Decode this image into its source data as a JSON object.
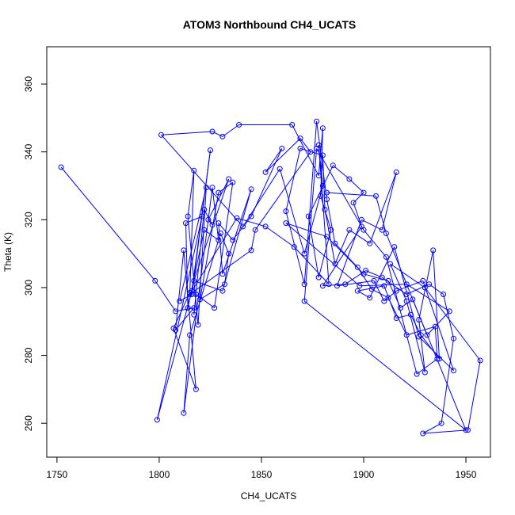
{
  "chart_data": {
    "type": "line",
    "title": "ATOM3 Northbound CH4_UCATS",
    "xlabel": "CH4_UCATS",
    "ylabel": "Theta (K)",
    "xlim": [
      1745,
      1962
    ],
    "ylim": [
      250,
      371
    ],
    "x_ticks": [
      1750,
      1800,
      1850,
      1900,
      1950
    ],
    "y_ticks": [
      260,
      280,
      300,
      320,
      340,
      360
    ],
    "grid": false,
    "markers": "open-circle",
    "line_color": "#0000ff",
    "series": [
      {
        "name": "",
        "points": [
          [
            1752,
            335.5
          ],
          [
            1798,
            302
          ],
          [
            1808,
            293
          ],
          [
            1817,
            294
          ],
          [
            1808,
            287.5
          ],
          [
            1812,
            311
          ],
          [
            1818,
            270
          ],
          [
            1807,
            288
          ],
          [
            1815,
            298.5
          ],
          [
            1817,
            334.5
          ],
          [
            1814,
            321
          ],
          [
            1819,
            289
          ],
          [
            1823,
            329.5
          ],
          [
            1810,
            296
          ],
          [
            1816,
            298
          ],
          [
            1825,
            340.5
          ],
          [
            1816,
            299
          ],
          [
            1799,
            261
          ],
          [
            1821,
            321
          ],
          [
            1813,
            319
          ],
          [
            1814,
            294
          ],
          [
            1822,
            317
          ],
          [
            1829,
            314
          ],
          [
            1826,
            329.5
          ],
          [
            1812,
            263
          ],
          [
            1815,
            286
          ],
          [
            1830,
            316
          ],
          [
            1834,
            310
          ],
          [
            1832,
            301
          ],
          [
            1820,
            296.5
          ],
          [
            1829,
            328
          ],
          [
            1836,
            331
          ],
          [
            1827,
            294
          ],
          [
            1818,
            298
          ],
          [
            1817,
            292
          ],
          [
            1822,
            323
          ],
          [
            1826,
            318.5
          ],
          [
            1824,
            320
          ],
          [
            1834,
            332
          ],
          [
            1817,
            302
          ],
          [
            1831,
            299
          ],
          [
            1845,
            329
          ],
          [
            1831,
            304
          ],
          [
            1829,
            319
          ],
          [
            1836,
            314
          ],
          [
            1845,
            321
          ],
          [
            1860,
            341
          ],
          [
            1852,
            334
          ],
          [
            1869,
            344
          ],
          [
            1874,
            340
          ],
          [
            1847,
            317
          ],
          [
            1845,
            311
          ],
          [
            1815,
            298
          ],
          [
            1838,
            320.5
          ],
          [
            1852,
            318
          ],
          [
            1866,
            312
          ],
          [
            1883,
            301
          ],
          [
            1878,
            342
          ],
          [
            1880,
            330
          ],
          [
            1871,
            310
          ],
          [
            1859,
            335
          ],
          [
            1841,
            318
          ],
          [
            1801,
            345
          ],
          [
            1826,
            346
          ],
          [
            1831,
            344.5
          ],
          [
            1839,
            348
          ],
          [
            1865,
            348
          ],
          [
            1878,
            333
          ],
          [
            1880,
            347
          ],
          [
            1879,
            327
          ],
          [
            1884,
            317
          ],
          [
            1878,
            303
          ],
          [
            1873,
            321
          ],
          [
            1885,
            336
          ],
          [
            1893,
            332
          ],
          [
            1900,
            328
          ],
          [
            1895,
            325
          ],
          [
            1899,
            318
          ],
          [
            1880,
            300.5
          ],
          [
            1891,
            301
          ],
          [
            1901,
            305
          ],
          [
            1909,
            303
          ],
          [
            1921,
            298
          ],
          [
            1932,
            301
          ],
          [
            1939,
            298
          ],
          [
            1944,
            285
          ],
          [
            1938,
            260
          ],
          [
            1929,
            257
          ],
          [
            1951,
            258
          ],
          [
            1957,
            278.5
          ],
          [
            1930,
            300
          ],
          [
            1913,
            307
          ],
          [
            1921,
            296
          ],
          [
            1930,
            275
          ],
          [
            1927,
            290.5
          ],
          [
            1934,
            311
          ],
          [
            1937,
            279
          ],
          [
            1928,
            286
          ],
          [
            1923,
            292
          ],
          [
            1916,
            291
          ],
          [
            1910,
            300.5
          ],
          [
            1897,
            299
          ],
          [
            1903,
            297
          ],
          [
            1915,
            312
          ],
          [
            1927,
            285.5
          ],
          [
            1944,
            275.5
          ],
          [
            1929,
            302
          ],
          [
            1916,
            299
          ],
          [
            1910,
            296
          ],
          [
            1905,
            302
          ],
          [
            1887,
            300.5
          ],
          [
            1899,
            320
          ],
          [
            1909,
            317
          ],
          [
            1916,
            334
          ],
          [
            1903,
            313
          ],
          [
            1893,
            317
          ],
          [
            1886,
            307
          ],
          [
            1881,
            323
          ],
          [
            1880,
            339
          ],
          [
            1869,
            341
          ],
          [
            1862,
            322.5
          ],
          [
            1871,
            301
          ],
          [
            1877,
            349
          ],
          [
            1882,
            326
          ],
          [
            1886,
            313
          ],
          [
            1897,
            306
          ],
          [
            1904,
            299.5
          ],
          [
            1912,
            297
          ],
          [
            1921,
            286
          ],
          [
            1935,
            288.5
          ],
          [
            1936,
            279
          ],
          [
            1926,
            274.5
          ],
          [
            1911,
            309
          ],
          [
            1900,
            317
          ],
          [
            1877,
            341
          ],
          [
            1871,
            296
          ],
          [
            1950,
            258
          ],
          [
            1924,
            296.5
          ],
          [
            1918,
            294
          ],
          [
            1912,
            302
          ],
          [
            1900,
            304
          ],
          [
            1882,
            315
          ],
          [
            1862,
            319
          ],
          [
            1898,
            300.5
          ],
          [
            1921,
            301
          ],
          [
            1942,
            293
          ],
          [
            1931,
            286
          ],
          [
            1911,
            316
          ],
          [
            1906,
            327
          ],
          [
            1882,
            328
          ]
        ]
      }
    ]
  }
}
